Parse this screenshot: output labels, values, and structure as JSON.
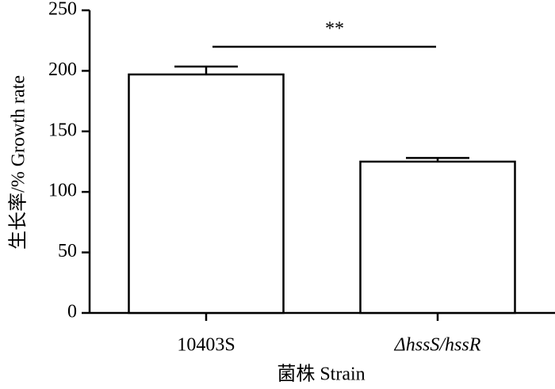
{
  "chart_data": {
    "type": "bar",
    "categories": [
      "10403S",
      "ΔhssS/hssR"
    ],
    "values": [
      197,
      125
    ],
    "errors": [
      6.5,
      3
    ],
    "color": "#ffffff",
    "ylim": [
      0,
      250
    ],
    "yticks": [
      0,
      50,
      100,
      150,
      200,
      250
    ],
    "y_label": "生长率/% Growth rate",
    "x_label": "菌株 Strain",
    "annotation": "**"
  }
}
